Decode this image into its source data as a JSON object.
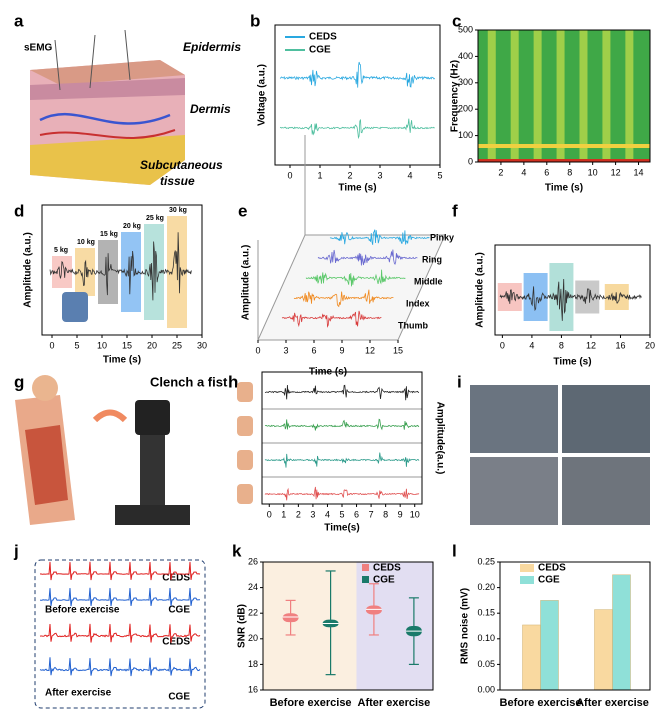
{
  "panels": {
    "a": {
      "label": "a",
      "texts": [
        "sEMG",
        "Epidermis",
        "Dermis",
        "Subcutaneous",
        "tissue"
      ]
    },
    "b": {
      "label": "b",
      "ylabel": "Voltage (a.u.)",
      "xlabel": "Time (s)",
      "xlim": [
        -0.5,
        5
      ],
      "xticks": [
        0,
        1,
        2,
        3,
        4,
        5
      ],
      "legend": [
        {
          "name": "CEDS",
          "color": "#29a8e0"
        },
        {
          "name": "CGE",
          "color": "#4fbf9f"
        }
      ]
    },
    "c": {
      "label": "c",
      "ylabel": "Frequency (Hz)",
      "xlabel": "Time (s)",
      "xlim": [
        0,
        15
      ],
      "xticks": [
        2,
        4,
        6,
        8,
        10,
        12,
        14
      ],
      "ylim": [
        0,
        500
      ],
      "yticks": [
        0,
        100,
        200,
        300,
        400,
        500
      ]
    },
    "d": {
      "label": "d",
      "ylabel": "Amplitude (a.u.)",
      "xlabel": "Time (s)",
      "xlim": [
        -2,
        30
      ],
      "xticks": [
        0,
        5,
        10,
        15,
        20,
        25,
        30
      ],
      "loads": [
        "5 kg",
        "10 kg",
        "15 kg",
        "20 kg",
        "25 kg",
        "30 kg"
      ]
    },
    "e": {
      "label": "e",
      "ylabel": "Amplitude (a.u.)",
      "xlabel": "Time (s)",
      "xlim": [
        0,
        15
      ],
      "xticks": [
        0,
        3,
        6,
        9,
        12,
        15
      ],
      "fingers": [
        "Pinky",
        "Ring",
        "Middle",
        "Index",
        "Thumb"
      ]
    },
    "f": {
      "label": "f",
      "ylabel": "Amplitude (a.u.)",
      "xlabel": "Time (s)",
      "xlim": [
        -1,
        20
      ],
      "xticks": [
        0,
        4,
        8,
        12,
        16,
        20
      ]
    },
    "g": {
      "label": "g",
      "title": "Clench a fist"
    },
    "h": {
      "label": "h",
      "ylabel": "Amplitude(a.u.)",
      "xlabel": "Time(s)",
      "xlim": [
        -0.5,
        10.5
      ],
      "xticks": [
        0,
        1,
        2,
        3,
        4,
        5,
        6,
        7,
        8,
        9,
        10
      ]
    },
    "i": {
      "label": "i"
    },
    "j": {
      "label": "j",
      "texts": [
        "CEDS",
        "Before exercise",
        "CGE",
        "CEDS",
        "After exercise",
        "CGE"
      ]
    },
    "k": {
      "label": "k",
      "ylabel": "SNR (dB)",
      "ylim": [
        16,
        26
      ],
      "yticks": [
        16,
        18,
        20,
        22,
        24,
        26
      ],
      "categories": [
        "Before exercise",
        "After exercise"
      ],
      "series": [
        {
          "name": "CEDS",
          "color": "#f08080",
          "min": [
            20.3,
            20.3
          ],
          "q1": [
            21.3,
            21.9
          ],
          "median": [
            21.7,
            22.3
          ],
          "q3": [
            22.0,
            22.6
          ],
          "max": [
            23.0,
            24.3
          ]
        },
        {
          "name": "CGE",
          "color": "#1a7a6a",
          "min": [
            17.2,
            18.0
          ],
          "q1": [
            20.9,
            20.2
          ],
          "median": [
            21.2,
            20.6
          ],
          "q3": [
            21.5,
            21.0
          ],
          "max": [
            25.3,
            23.2
          ]
        }
      ]
    },
    "l": {
      "label": "l",
      "ylabel": "RMS noise (mV)",
      "ylim": [
        0,
        0.25
      ],
      "yticks": [
        {
          "value": 0,
          "label": "0.00"
        },
        {
          "value": 0.05,
          "label": "0.05"
        },
        {
          "value": 0.1,
          "label": "0.10"
        },
        {
          "value": 0.15,
          "label": "0.15"
        },
        {
          "value": 0.2,
          "label": "0.20"
        },
        {
          "value": 0.25,
          "label": "0.25"
        }
      ],
      "categories": [
        "Before exercise",
        "After exercise"
      ],
      "series": [
        {
          "name": "CEDS",
          "color": "#f9d9a0",
          "values": [
            0.127,
            0.157
          ]
        },
        {
          "name": "CGE",
          "color": "#8fe0d8",
          "values": [
            0.175,
            0.225
          ]
        }
      ]
    }
  }
}
